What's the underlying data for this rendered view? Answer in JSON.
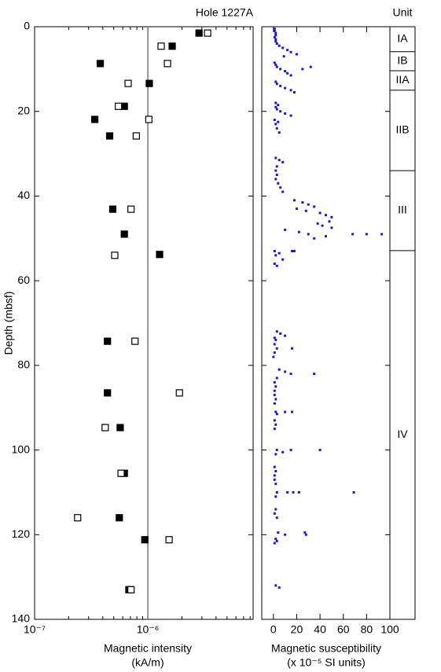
{
  "chart_data": [
    {
      "type": "scatter",
      "title": "Hole 1227A",
      "xlabel": [
        "Magnetic intensity",
        "(kA/m)"
      ],
      "ylabel": "Depth (mbsf)",
      "xscale": "log",
      "minor_ticks": true,
      "xlim": [
        1e-07,
        8.5e-06
      ],
      "xticks": [
        {
          "value": 1e-07,
          "label": "10⁻⁷"
        },
        {
          "value": 1e-06,
          "label": "10⁻⁶"
        }
      ],
      "ylim": [
        0,
        140
      ],
      "yticks": [
        0,
        20,
        40,
        60,
        80,
        100,
        120,
        140
      ],
      "y_inverted": true,
      "reference_line": 1e-06,
      "series": [
        {
          "marker": "filled",
          "color": "#000000",
          "x": [
            2.83e-06,
            1.64e-06,
            3.8e-07,
            1.03e-06,
            6.2e-07,
            3.4e-07,
            4.6e-07,
            4.9e-07,
            6.2e-07,
            1.27e-06,
            4.4e-07,
            4.4e-07,
            5.7e-07,
            6.2e-07,
            5.6e-07,
            9.4e-07,
            6.8e-07
          ],
          "values": [
            1.5,
            4.6,
            8.7,
            13.4,
            18.8,
            21.9,
            25.8,
            43.1,
            49,
            53.8,
            74.3,
            86.5,
            94.7,
            105.5,
            116,
            121.2,
            133
          ]
        },
        {
          "marker": "open",
          "color": "#000000",
          "x": [
            3.37e-06,
            1.31e-06,
            1.49e-06,
            6.7e-07,
            5.5e-07,
            1.02e-06,
            7.9e-07,
            7.1e-07,
            5.1e-07,
            7.7e-07,
            1.9e-06,
            4.2e-07,
            5.8e-07,
            2.4e-07,
            1.54e-06,
            7.1e-07
          ],
          "values": [
            1.5,
            4.6,
            8.7,
            13.4,
            18.8,
            21.9,
            25.8,
            43.1,
            54,
            74.3,
            86.5,
            94.7,
            105.5,
            116,
            121.2,
            133
          ]
        }
      ]
    },
    {
      "type": "scatter",
      "xlabel": [
        "Magnetic susceptibility",
        "(x 10⁻⁵ SI units)"
      ],
      "xlim": [
        -10,
        100
      ],
      "xticks": [
        0,
        20,
        40,
        60,
        80,
        100
      ],
      "ylim": [
        0,
        140
      ],
      "yticks": [
        0,
        20,
        40,
        60,
        80,
        100,
        120,
        140
      ],
      "y_inverted": true,
      "series": [
        {
          "marker": "small",
          "color": "#1a1ad2",
          "x": [
            1,
            1,
            2,
            2,
            1,
            2,
            2,
            3,
            5,
            8,
            12,
            15,
            20,
            9,
            1,
            2,
            3,
            6,
            10,
            12,
            15,
            25,
            32,
            2,
            3,
            6,
            10,
            15,
            18,
            2,
            4,
            2,
            3,
            6,
            10,
            15,
            1,
            4,
            2,
            3,
            5,
            2,
            5,
            8,
            3,
            2,
            3,
            2,
            4,
            6,
            8,
            18,
            25,
            30,
            35,
            20,
            28,
            40,
            45,
            50,
            48,
            38,
            42,
            50,
            10,
            22,
            30,
            45,
            68,
            80,
            93,
            35,
            1,
            5,
            16,
            18,
            2,
            8,
            1,
            3,
            3,
            6,
            10,
            1,
            2,
            1,
            3,
            16,
            1,
            0,
            5,
            10,
            15,
            35,
            3,
            1,
            2,
            1,
            1,
            2,
            1,
            2,
            10,
            16,
            3,
            1,
            2,
            1,
            3,
            8,
            15,
            2,
            40,
            1,
            2,
            1,
            1,
            2,
            3,
            12,
            17,
            22,
            69,
            2,
            2,
            1,
            3,
            4,
            10,
            28,
            27,
            2,
            3,
            1,
            2,
            5
          ],
          "values": [
            0.5,
            1,
            1.5,
            2,
            2.5,
            3,
            3.5,
            4,
            4.5,
            5,
            5.5,
            6,
            6.5,
            7,
            8.5,
            9,
            9.5,
            10,
            10.5,
            11,
            11.5,
            10,
            9.5,
            13,
            13.5,
            14,
            14.5,
            15,
            15.5,
            18,
            18.5,
            19,
            19.5,
            20,
            20.5,
            21,
            22,
            22.5,
            23,
            24,
            25,
            31,
            31.5,
            32,
            33,
            34,
            35,
            36,
            37,
            38,
            39,
            41,
            41.5,
            42,
            42.5,
            43,
            43.5,
            44,
            44.5,
            45,
            46,
            46.5,
            47,
            47.5,
            48,
            48.5,
            49,
            49.5,
            49,
            49,
            49,
            50,
            53,
            53.5,
            53,
            53,
            54,
            55,
            56,
            56.5,
            72,
            72.5,
            73,
            73.5,
            74,
            75,
            76,
            76,
            77,
            78,
            81,
            81.5,
            82,
            82,
            83,
            84,
            85,
            86,
            87,
            88,
            89,
            91,
            91,
            91,
            91.5,
            93,
            94,
            95,
            100,
            100.5,
            100,
            101,
            100,
            104,
            105,
            106,
            107,
            108,
            110,
            110,
            110,
            110,
            110,
            111,
            114,
            115,
            116,
            119.5,
            120,
            120,
            119.5,
            121,
            121.5,
            122,
            132,
            132.5
          ]
        }
      ]
    }
  ],
  "units": {
    "title": "Unit",
    "ylim": [
      0,
      140
    ],
    "intervals": [
      {
        "label": "IA",
        "top": 0,
        "base": 5.9
      },
      {
        "label": "IB",
        "top": 5.9,
        "base": 10.4
      },
      {
        "label": "IIA",
        "top": 10.4,
        "base": 15.0
      },
      {
        "label": "IIB",
        "top": 15.0,
        "base": 34.0
      },
      {
        "label": "III",
        "top": 34.0,
        "base": 52.9
      },
      {
        "label": "IV",
        "top": 52.9,
        "base": 140
      }
    ]
  }
}
